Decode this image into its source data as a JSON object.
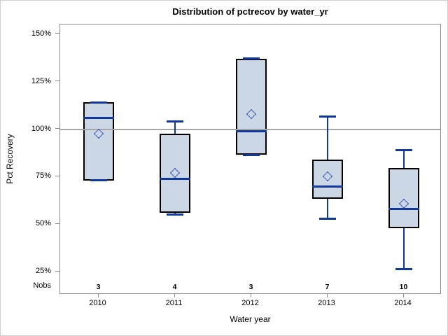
{
  "title": "Distribution of pctrecov by water_yr",
  "y_axis": {
    "label": "Pct Recovery",
    "nobs_label": "Nobs",
    "ticks": [
      {
        "value": 150,
        "label": "150%"
      },
      {
        "value": 125,
        "label": "125%"
      },
      {
        "value": 100,
        "label": "100%"
      },
      {
        "value": 75,
        "label": "75%"
      },
      {
        "value": 50,
        "label": "50%"
      },
      {
        "value": 25,
        "label": "25%"
      }
    ]
  },
  "x_axis": {
    "label": "Water year",
    "categories": [
      "2010",
      "2011",
      "2012",
      "2013",
      "2014"
    ]
  },
  "chart_data": {
    "type": "box",
    "title": "Distribution of pctrecov by water_yr",
    "xlabel": "Water year",
    "ylabel": "Pct Recovery",
    "ylim": [
      13,
      155
    ],
    "yticks_pct": [
      25,
      50,
      75,
      100,
      125,
      150
    ],
    "reference_line": 100,
    "legend": "none",
    "grid": "off",
    "categories": [
      "2010",
      "2011",
      "2012",
      "2013",
      "2014"
    ],
    "series": [
      {
        "category": "2010",
        "nobs": 3,
        "min": 73,
        "q1": 73,
        "median": 106,
        "q3": 114,
        "max": 114,
        "mean": 97.5
      },
      {
        "category": "2011",
        "nobs": 4,
        "min": 55,
        "q1": 56,
        "median": 74,
        "q3": 97.5,
        "max": 104,
        "mean": 77
      },
      {
        "category": "2012",
        "nobs": 3,
        "min": 86.5,
        "q1": 86.5,
        "median": 99,
        "q3": 137,
        "max": 137,
        "mean": 108
      },
      {
        "category": "2013",
        "nobs": 7,
        "min": 53,
        "q1": 63.5,
        "median": 70,
        "q3": 84,
        "max": 106.5,
        "mean": 75
      },
      {
        "category": "2014",
        "nobs": 10,
        "min": 26.5,
        "q1": 48,
        "median": 58,
        "q3": 79.5,
        "max": 89,
        "mean": 61
      }
    ]
  },
  "colors": {
    "box_fill": "#ccd7e6",
    "box_border": "#000000",
    "whisker_median_blue": "#11389d",
    "mean_marker_blue": "#2b4bae",
    "reference_line_gray": "#a6a6a6",
    "plot_border_gray": "#8c8c8c",
    "figure_border_gray": "#cfcfcf"
  }
}
